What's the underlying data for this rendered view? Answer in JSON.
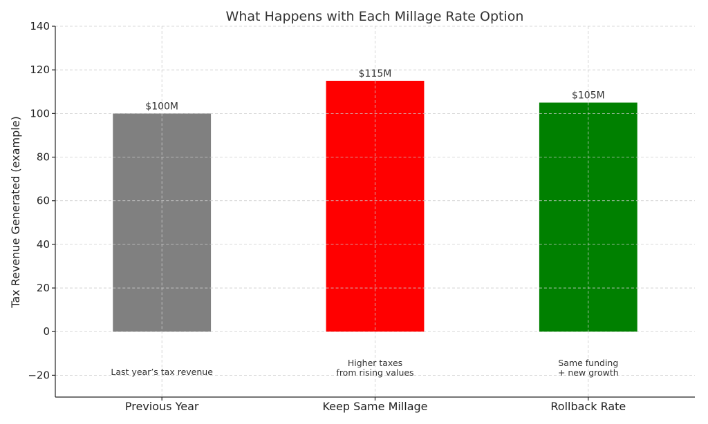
{
  "chart_data": {
    "type": "bar",
    "title": "What Happens with Each Millage Rate Option",
    "xlabel": "",
    "ylabel": "Tax Revenue Generated (example)",
    "ylim": [
      -30,
      140
    ],
    "yticks": [
      -20,
      0,
      20,
      40,
      60,
      80,
      100,
      120,
      140
    ],
    "ytick_labels": [
      "−20",
      "0",
      "20",
      "40",
      "60",
      "80",
      "100",
      "120",
      "140"
    ],
    "grid": true,
    "categories": [
      "Previous Year",
      "Keep Same Millage",
      "Rollback Rate"
    ],
    "values": [
      100,
      115,
      105
    ],
    "bar_colors": [
      "#808080",
      "#ff0000",
      "#008000"
    ],
    "value_labels": [
      "$100M",
      "$115M",
      "$105M"
    ],
    "annotations": [
      {
        "lines": [
          "Last year’s tax revenue"
        ]
      },
      {
        "lines": [
          "Higher taxes",
          "from rising values"
        ]
      },
      {
        "lines": [
          "Same funding",
          "+ new growth"
        ]
      }
    ]
  }
}
